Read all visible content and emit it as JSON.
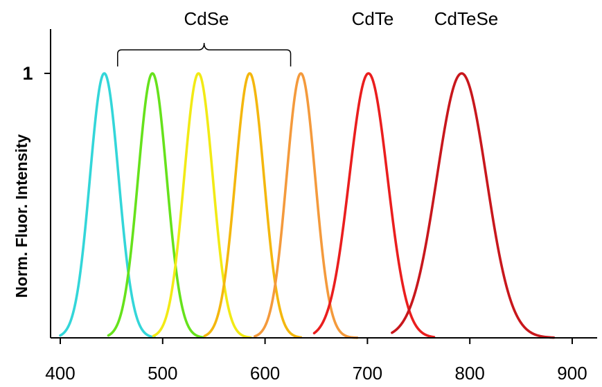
{
  "chart_data": {
    "type": "line",
    "title": "",
    "xlabel": "",
    "ylabel": "Norm. Fluor.  Intensity",
    "xlim": [
      400,
      900
    ],
    "ylim": [
      0,
      1
    ],
    "x_ticks": [
      "400",
      "500",
      "600",
      "700",
      "800",
      "900"
    ],
    "y_ticks": [
      "1"
    ],
    "grid": false,
    "legend": "none",
    "annotations": [
      {
        "id": "cdse",
        "text": "CdSe",
        "bracket": true,
        "bracket_range": [
          456,
          625
        ]
      },
      {
        "id": "cdte",
        "text": "CdTe"
      },
      {
        "id": "cdtese",
        "text": "CdTeSe"
      }
    ],
    "series": [
      {
        "group": "CdSe",
        "color": "#33d6d9",
        "peak": 443,
        "fwhm": 33,
        "range": [
          400,
          492
        ]
      },
      {
        "group": "CdSe",
        "color": "#66e21c",
        "peak": 490,
        "fwhm": 33,
        "range": [
          447,
          540
        ]
      },
      {
        "group": "CdSe",
        "color": "#f2ea15",
        "peak": 535,
        "fwhm": 33,
        "range": [
          491,
          586
        ]
      },
      {
        "group": "CdSe",
        "color": "#f4b70e",
        "peak": 585,
        "fwhm": 33,
        "range": [
          541,
          635
        ]
      },
      {
        "group": "CdSe",
        "color": "#f49a3c",
        "peak": 635,
        "fwhm": 33,
        "range": [
          590,
          690
        ]
      },
      {
        "group": "CdTe",
        "color": "#ea1e1e",
        "peak": 701,
        "fwhm": 44,
        "range": [
          648,
          765
        ]
      },
      {
        "group": "CdTeSe",
        "color": "#c8171c",
        "peak": 792,
        "fwhm": 57,
        "range": [
          724,
          882
        ]
      }
    ]
  }
}
